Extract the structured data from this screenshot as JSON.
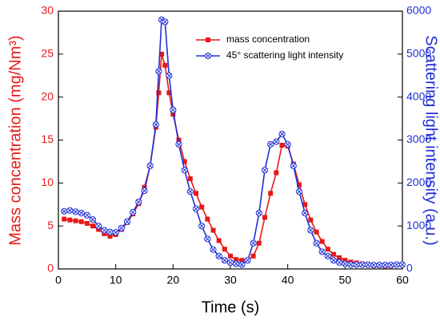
{
  "chart_data": {
    "type": "line",
    "xlabel": "Time (s)",
    "ylabel": "Mass concentration (mg/Nm³)",
    "y2label": "Scattering light intensity (a.u.)",
    "legend": "upper center",
    "x": [
      1,
      2,
      3,
      4,
      5,
      6,
      7,
      8,
      9,
      10,
      11,
      12,
      13,
      14,
      15,
      16,
      17,
      17.5,
      18,
      18.6,
      19.3,
      20,
      21,
      22,
      23,
      24,
      25,
      26,
      27,
      28,
      29,
      30,
      31,
      32,
      33,
      34,
      35,
      36,
      37,
      38,
      39,
      40,
      41,
      42,
      43,
      44,
      45,
      46,
      47,
      48,
      49,
      50,
      51,
      52,
      53,
      54,
      55,
      56,
      57,
      58,
      59,
      60
    ],
    "series": [
      {
        "name": "mass concentration",
        "color": "#e8191b",
        "marker": "square",
        "axis": "y",
        "values": [
          5.8,
          5.7,
          5.6,
          5.5,
          5.3,
          5.0,
          4.6,
          4.1,
          3.8,
          4.0,
          4.6,
          5.4,
          6.4,
          7.6,
          9.5,
          12.0,
          16.5,
          20.5,
          25,
          23.7,
          20.5,
          18,
          15,
          12.5,
          10.5,
          8.8,
          7.2,
          5.8,
          4.5,
          3.3,
          2.3,
          1.5,
          1.1,
          1.0,
          1.0,
          1.5,
          3.0,
          6.0,
          8.8,
          11.2,
          14.4,
          14.3,
          12.2,
          9.8,
          7.5,
          5.7,
          4.3,
          3.2,
          2.3,
          1.7,
          1.3,
          1.0,
          0.8,
          0.7,
          0.6,
          0.5,
          0.4,
          0.4,
          0.3,
          0.4,
          0.5,
          0.5
        ]
      },
      {
        "name": "45° scattering light intensity",
        "color": "#1f2fd6",
        "marker": "circle-x",
        "axis": "y2",
        "values": [
          1340,
          1360,
          1330,
          1300,
          1250,
          1150,
          1000,
          900,
          860,
          850,
          950,
          1100,
          1320,
          1560,
          1820,
          2400,
          3360,
          4600,
          5800,
          5750,
          4500,
          3700,
          2900,
          2300,
          1800,
          1400,
          1000,
          700,
          450,
          300,
          200,
          150,
          120,
          100,
          200,
          600,
          1300,
          2300,
          2900,
          2960,
          3140,
          2900,
          2400,
          1800,
          1300,
          900,
          600,
          400,
          300,
          200,
          150,
          120,
          100,
          100,
          100,
          100,
          90,
          90,
          90,
          90,
          100,
          100
        ]
      }
    ],
    "xlim": [
      0,
      60
    ],
    "xticks": [
      0,
      10,
      20,
      30,
      40,
      50,
      60
    ],
    "ylim": [
      0,
      30
    ],
    "yticks": [
      0,
      5,
      10,
      15,
      20,
      25,
      30
    ],
    "y2lim": [
      0,
      6000
    ],
    "y2ticks": [
      0,
      1000,
      2000,
      3000,
      4000,
      5000,
      6000
    ]
  }
}
